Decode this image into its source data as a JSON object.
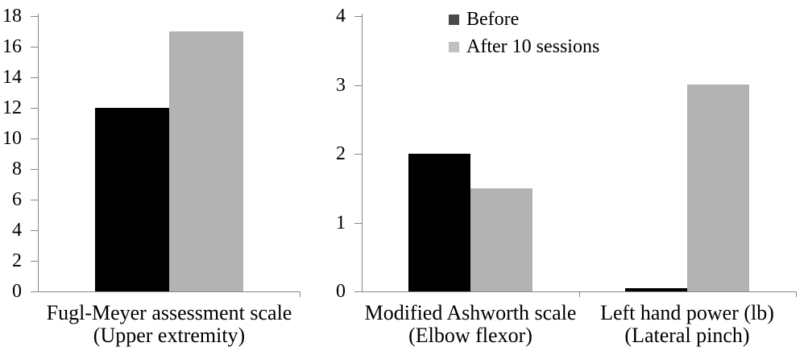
{
  "figure": {
    "background_color": "#ffffff",
    "text_color": "#000000",
    "axis_color": "#878787"
  },
  "legend": {
    "position": "top, over right chart",
    "entries": [
      {
        "label": "Before",
        "swatch_color": "#4a4a4a"
      },
      {
        "label": "After 10 sessions",
        "swatch_color": "#c0c0c0"
      }
    ]
  },
  "chart_data": [
    {
      "type": "bar",
      "title": "",
      "xlabel": "",
      "ylabel": "",
      "grid": false,
      "categories": [
        "Fugl-Meyer assessment scale (Upper extremity)"
      ],
      "category_label_lines": [
        [
          "Fugl-Meyer assessment scale",
          "(Upper extremity)"
        ]
      ],
      "series": [
        {
          "name": "Before",
          "color": "#000000",
          "values": [
            12
          ]
        },
        {
          "name": "After 10 sessions",
          "color": "#b3b3b3",
          "values": [
            17
          ]
        }
      ],
      "ylim": [
        0,
        18
      ],
      "yticks": [
        0,
        2,
        4,
        6,
        8,
        10,
        12,
        14,
        16,
        18
      ]
    },
    {
      "type": "bar",
      "title": "",
      "xlabel": "",
      "ylabel": "",
      "grid": false,
      "categories": [
        "Modified Ashworth scale (Elbow flexor)",
        "Left hand power (lb) (Lateral pinch)"
      ],
      "category_label_lines": [
        [
          "Modified Ashworth scale",
          "(Elbow flexor)"
        ],
        [
          "Left hand power (lb)",
          "(Lateral pinch)"
        ]
      ],
      "series": [
        {
          "name": "Before",
          "color": "#000000",
          "values": [
            2,
            0.05
          ]
        },
        {
          "name": "After 10 sessions",
          "color": "#b3b3b3",
          "values": [
            1.5,
            3
          ]
        }
      ],
      "ylim": [
        0,
        4
      ],
      "yticks": [
        0,
        1,
        2,
        3,
        4
      ]
    }
  ]
}
